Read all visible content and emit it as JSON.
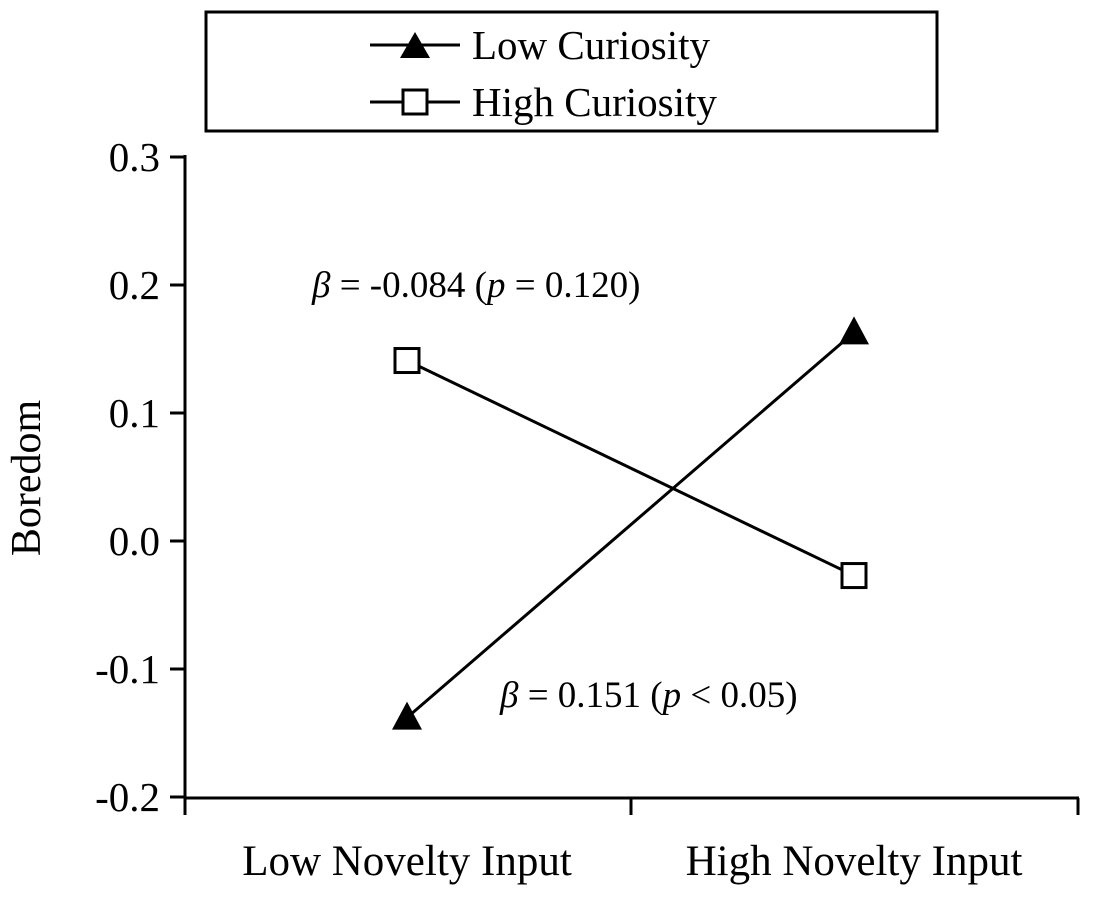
{
  "chart_data": {
    "type": "line",
    "ylabel": "Boredom",
    "categories": [
      "Low Novelty Input",
      "High Novelty Input"
    ],
    "ylim": [
      -0.2,
      0.3
    ],
    "y_ticks": [
      "0.3",
      "0.2",
      "0.1",
      "0.0",
      "-0.1",
      "-0.2"
    ],
    "legend_position": "top",
    "series": [
      {
        "name": "Low Curiosity",
        "marker": "triangle-filled",
        "values": [
          -0.138,
          0.163
        ]
      },
      {
        "name": "High Curiosity",
        "marker": "square-open",
        "values": [
          0.141,
          -0.027
        ]
      }
    ],
    "annotations": {
      "high_curiosity": {
        "beta_symbol": "β",
        "beta_rest": " = -0.084 (",
        "p_symbol": "p",
        "p_rest": " = 0.120)"
      },
      "low_curiosity": {
        "beta_symbol": "β",
        "beta_rest": " = 0.151 (",
        "p_symbol": "p",
        "p_rest": " < 0.05)"
      }
    }
  }
}
